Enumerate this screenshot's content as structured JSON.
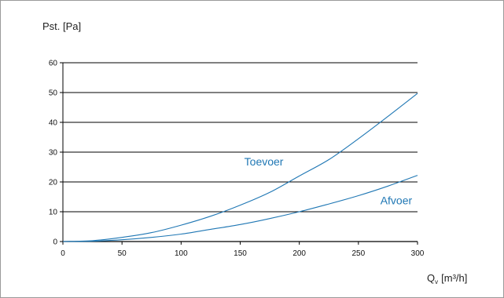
{
  "chart_data": {
    "type": "line",
    "ylabel": "Pst. [Pa]",
    "xlabel_main": "Q",
    "xlabel_sub": "v",
    "xlabel_unit": "[m³/h]",
    "xlim": [
      0,
      300
    ],
    "ylim": [
      0,
      60
    ],
    "xticks": [
      0,
      50,
      100,
      150,
      200,
      250,
      300
    ],
    "yticks": [
      0,
      10,
      20,
      30,
      40,
      50,
      60
    ],
    "grid": "horizontal",
    "line_color": "#1f77b4",
    "series": [
      {
        "name": "Toevoer",
        "x": [
          0,
          25,
          50,
          75,
          100,
          125,
          150,
          175,
          200,
          225,
          250,
          275,
          300
        ],
        "values": [
          0,
          0.3,
          1.4,
          3.0,
          5.5,
          8.5,
          12.2,
          16.5,
          22.0,
          27.5,
          34.5,
          42.0,
          49.7
        ]
      },
      {
        "name": "Afvoer",
        "x": [
          0,
          25,
          50,
          75,
          100,
          125,
          150,
          175,
          200,
          225,
          250,
          275,
          300
        ],
        "values": [
          0,
          0.1,
          0.6,
          1.4,
          2.5,
          4.1,
          5.7,
          7.7,
          10.0,
          12.6,
          15.4,
          18.6,
          22.2
        ]
      }
    ]
  }
}
